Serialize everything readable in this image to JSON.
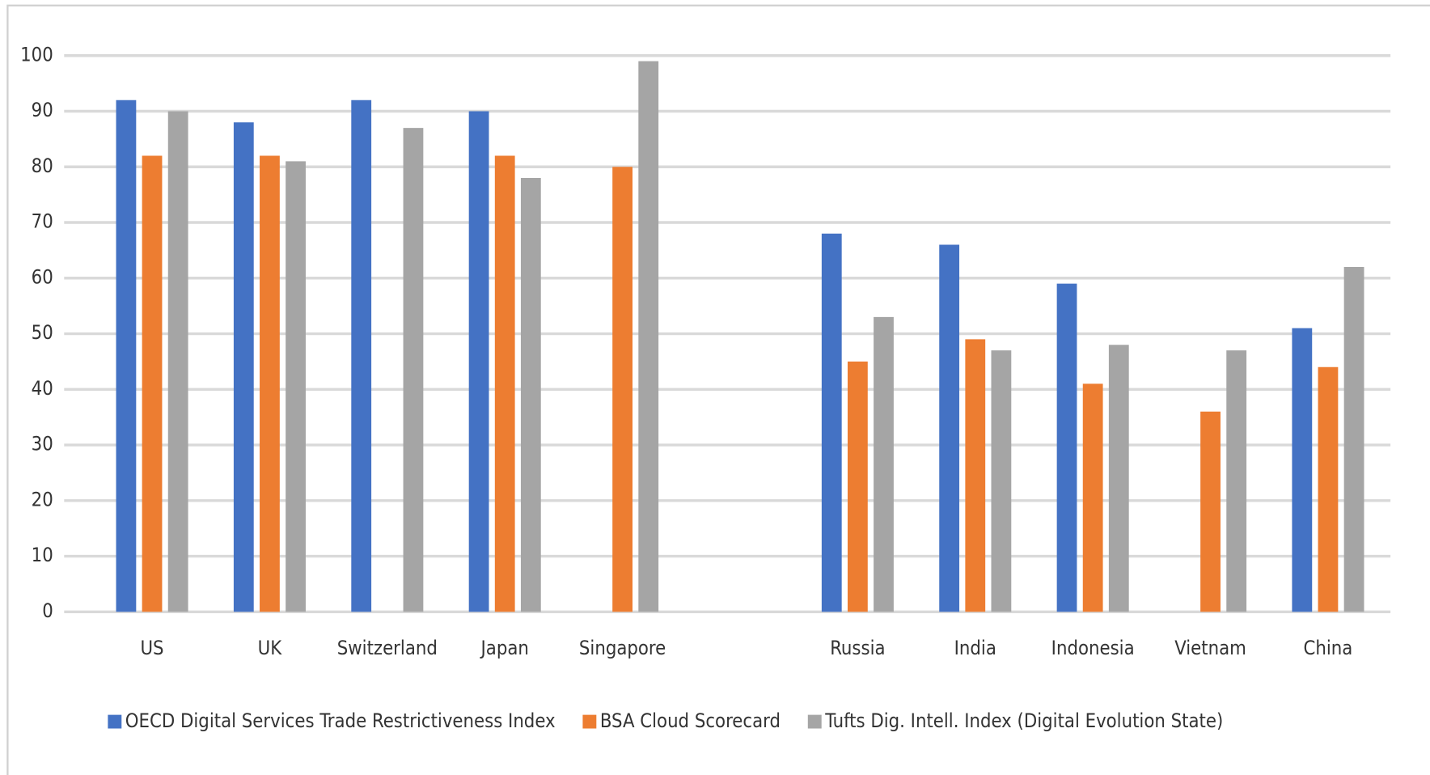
{
  "chart_data": {
    "type": "bar",
    "categories": [
      "US",
      "UK",
      "Switzerland",
      "Japan",
      "Singapore",
      null,
      "Russia",
      "India",
      "Indonesia",
      "Vietnam",
      "China"
    ],
    "series": [
      {
        "name": "OECD Digital Services Trade Restrictiveness Index",
        "color": "#4472c4",
        "values": [
          92,
          88,
          92,
          90,
          null,
          null,
          68,
          66,
          59,
          null,
          51
        ]
      },
      {
        "name": "BSA Cloud Scorecard",
        "color": "#ed7d31",
        "values": [
          82,
          82,
          null,
          82,
          80,
          null,
          45,
          49,
          41,
          36,
          44
        ]
      },
      {
        "name": "Tufts Dig. Intell. Index (Digital Evolution State)",
        "color": "#a5a5a5",
        "values": [
          90,
          81,
          87,
          78,
          99,
          null,
          53,
          47,
          48,
          47,
          62
        ]
      }
    ],
    "ylim": [
      0,
      100
    ],
    "yticks": [
      0,
      10,
      20,
      30,
      40,
      50,
      60,
      70,
      80,
      90,
      100
    ],
    "grid": true,
    "legend": "bottom"
  }
}
